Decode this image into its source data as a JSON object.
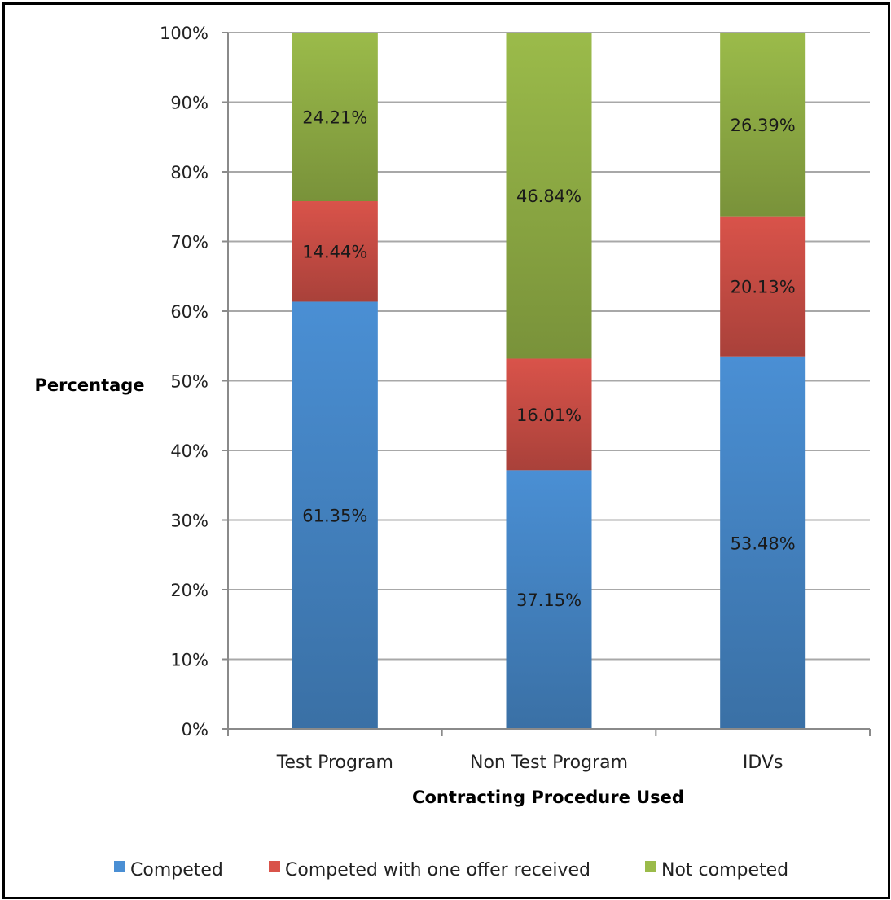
{
  "chart_data": {
    "type": "bar",
    "stacked": true,
    "title": "",
    "xlabel": "Contracting Procedure Used",
    "ylabel": "Percentage",
    "ylim": [
      0,
      100
    ],
    "yticks": [
      "0%",
      "10%",
      "20%",
      "30%",
      "40%",
      "50%",
      "60%",
      "70%",
      "80%",
      "90%",
      "100%"
    ],
    "categories": [
      "Test Program",
      "Non Test Program",
      "IDVs"
    ],
    "series": [
      {
        "name": "Competed",
        "color": "#4a8fd4",
        "values": [
          61.35,
          37.15,
          53.48
        ],
        "labels": [
          "61.35%",
          "37.15%",
          "53.48%"
        ]
      },
      {
        "name": "Competed with one offer received",
        "color": "#d9534a",
        "values": [
          14.44,
          16.01,
          20.13
        ],
        "labels": [
          "14.44%",
          "16.01%",
          "20.13%"
        ]
      },
      {
        "name": "Not competed",
        "color": "#9bbb4a",
        "values": [
          24.21,
          46.84,
          26.39
        ],
        "labels": [
          "24.21%",
          "46.84%",
          "26.39%"
        ]
      }
    ],
    "grid": true,
    "legend_position": "bottom"
  }
}
